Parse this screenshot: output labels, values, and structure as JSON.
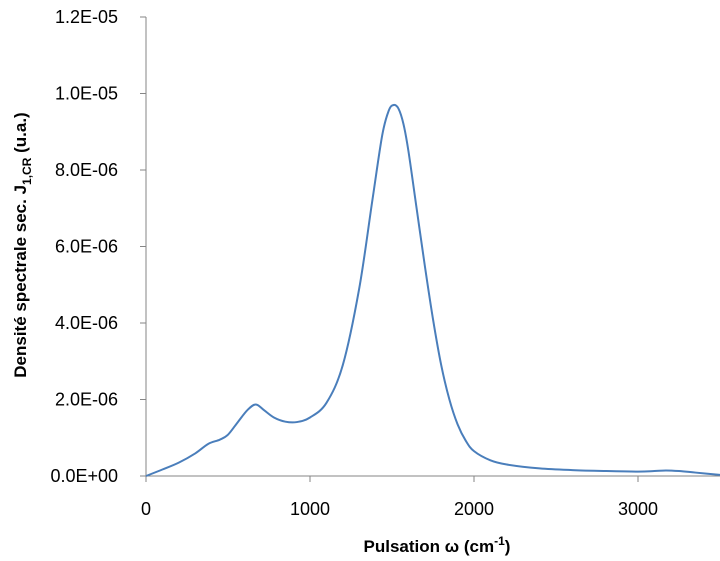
{
  "chart_data": {
    "type": "line",
    "title": "",
    "xlabel": {
      "main": "Pulsation ",
      "symbol": "ω",
      "unit_open": " (cm",
      "unit_sup": "-1",
      "unit_close": ")"
    },
    "ylabel": {
      "main": "Densité spectrale sec. J",
      "sub": "1,CR",
      "tail": " (u.a.)"
    },
    "xlim": [
      0,
      3500
    ],
    "ylim": [
      0,
      1.2e-05
    ],
    "x_ticks": [
      0,
      1000,
      2000,
      3000
    ],
    "x_tick_labels": [
      "0",
      "1000",
      "2000",
      "3000"
    ],
    "y_ticks": [
      0,
      2e-06,
      4e-06,
      6e-06,
      8e-06,
      1e-05,
      1.2e-05
    ],
    "y_tick_labels": [
      "0.0E+00",
      "2.0E-06",
      "4.0E-06",
      "6.0E-06",
      "8.0E-06",
      "1.0E-05",
      "1.2E-05"
    ],
    "grid": false,
    "legend": "none",
    "series": [
      {
        "color": "#4a7ebb",
        "x": [
          0,
          100,
          200,
          300,
          380,
          450,
          500,
          560,
          620,
          670,
          720,
          780,
          850,
          920,
          1000,
          1100,
          1200,
          1300,
          1380,
          1440,
          1480,
          1510,
          1540,
          1570,
          1600,
          1650,
          1700,
          1750,
          1800,
          1850,
          1900,
          1950,
          2000,
          2100,
          2200,
          2400,
          2600,
          2800,
          3000,
          3100,
          3170,
          3250,
          3350,
          3500
        ],
        "y": [
          0,
          1.7e-07,
          3.5e-07,
          5.9e-07,
          8.4e-07,
          9.5e-07,
          1.08e-06,
          1.41e-06,
          1.73e-06,
          1.87e-06,
          1.72e-06,
          1.53e-06,
          1.42e-06,
          1.41e-06,
          1.53e-06,
          1.91e-06,
          2.9e-06,
          4.9e-06,
          7.2e-06,
          8.9e-06,
          9.55e-06,
          9.7e-06,
          9.6e-06,
          9.2e-06,
          8.5e-06,
          7e-06,
          5.5e-06,
          4.1e-06,
          2.9e-06,
          2e-06,
          1.35e-06,
          9.2e-07,
          6.5e-07,
          4.1e-07,
          3e-07,
          2e-07,
          1.55e-07,
          1.3e-07,
          1.15e-07,
          1.3e-07,
          1.45e-07,
          1.3e-07,
          9e-08,
          3e-08
        ]
      }
    ]
  }
}
